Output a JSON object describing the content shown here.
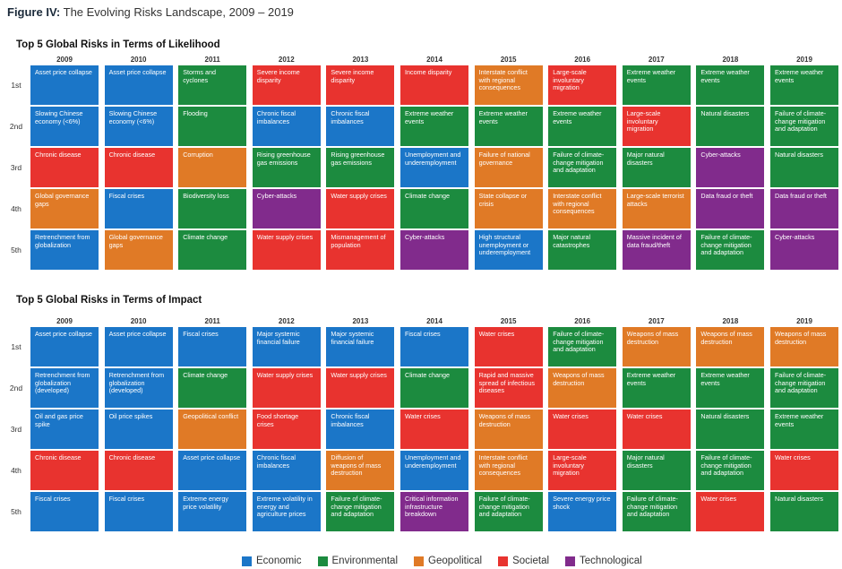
{
  "figure_title": {
    "prefix": "Figure IV:",
    "text": "The Evolving Risks Landscape, 2009 – 2019"
  },
  "categories": {
    "Economic": "#1b76c8",
    "Environmental": "#1c8b3f",
    "Geopolitical": "#e07a26",
    "Societal": "#e8332f",
    "Technological": "#812b8c"
  },
  "legend": [
    "Economic",
    "Environmental",
    "Geopolitical",
    "Societal",
    "Technological"
  ],
  "chart_data": [
    {
      "type": "table",
      "title": "Top 5 Global Risks in Terms of Likelihood",
      "years": [
        "2009",
        "2010",
        "2011",
        "2012",
        "2013",
        "2014",
        "2015",
        "2016",
        "2017",
        "2018",
        "2019"
      ],
      "ranks": [
        "1st",
        "2nd",
        "3rd",
        "4th",
        "5th"
      ],
      "cells": [
        [
          [
            "Asset price collapse",
            "Economic"
          ],
          [
            "Asset price collapse",
            "Economic"
          ],
          [
            "Storms and cyclones",
            "Environmental"
          ],
          [
            "Severe income disparity",
            "Societal"
          ],
          [
            "Severe income disparity",
            "Societal"
          ],
          [
            "Income disparity",
            "Societal"
          ],
          [
            "Interstate conflict with regional consequences",
            "Geopolitical"
          ],
          [
            "Large-scale involuntary migration",
            "Societal"
          ],
          [
            "Extreme weather events",
            "Environmental"
          ],
          [
            "Extreme weather events",
            "Environmental"
          ],
          [
            "Extreme weather events",
            "Environmental"
          ]
        ],
        [
          [
            "Slowing Chinese economy (<6%)",
            "Economic"
          ],
          [
            "Slowing Chinese economy (<6%)",
            "Economic"
          ],
          [
            "Flooding",
            "Environmental"
          ],
          [
            "Chronic fiscal imbalances",
            "Economic"
          ],
          [
            "Chronic fiscal imbalances",
            "Economic"
          ],
          [
            "Extreme weather events",
            "Environmental"
          ],
          [
            "Extreme weather events",
            "Environmental"
          ],
          [
            "Extreme weather events",
            "Environmental"
          ],
          [
            "Large-scale involuntary migration",
            "Societal"
          ],
          [
            "Natural disasters",
            "Environmental"
          ],
          [
            "Failure of climate-change mitigation and adaptation",
            "Environmental"
          ]
        ],
        [
          [
            "Chronic disease",
            "Societal"
          ],
          [
            "Chronic disease",
            "Societal"
          ],
          [
            "Corruption",
            "Geopolitical"
          ],
          [
            "Rising greenhouse gas emissions",
            "Environmental"
          ],
          [
            "Rising greenhouse gas emissions",
            "Environmental"
          ],
          [
            "Unemployment and underemployment",
            "Economic"
          ],
          [
            "Failure of national governance",
            "Geopolitical"
          ],
          [
            "Failure of climate-change mitigation and adaptation",
            "Environmental"
          ],
          [
            "Major natural disasters",
            "Environmental"
          ],
          [
            "Cyber-attacks",
            "Technological"
          ],
          [
            "Natural disasters",
            "Environmental"
          ]
        ],
        [
          [
            "Global governance gaps",
            "Geopolitical"
          ],
          [
            "Fiscal crises",
            "Economic"
          ],
          [
            "Biodiversity loss",
            "Environmental"
          ],
          [
            "Cyber-attacks",
            "Technological"
          ],
          [
            "Water supply crises",
            "Societal"
          ],
          [
            "Climate change",
            "Environmental"
          ],
          [
            "State collapse or crisis",
            "Geopolitical"
          ],
          [
            "Interstate conflict with regional consequences",
            "Geopolitical"
          ],
          [
            "Large-scale terrorist attacks",
            "Geopolitical"
          ],
          [
            "Data fraud or theft",
            "Technological"
          ],
          [
            "Data fraud or theft",
            "Technological"
          ]
        ],
        [
          [
            "Retrenchment from globalization",
            "Economic"
          ],
          [
            "Global governance gaps",
            "Geopolitical"
          ],
          [
            "Climate change",
            "Environmental"
          ],
          [
            "Water supply crises",
            "Societal"
          ],
          [
            "Mismanagement of population",
            "Societal"
          ],
          [
            "Cyber-attacks",
            "Technological"
          ],
          [
            "High structural unemployment or underemployment",
            "Economic"
          ],
          [
            "Major natural catastrophes",
            "Environmental"
          ],
          [
            "Massive incident of data fraud/theft",
            "Technological"
          ],
          [
            "Failure of climate-change mitigation and adaptation",
            "Environmental"
          ],
          [
            "Cyber-attacks",
            "Technological"
          ]
        ]
      ]
    },
    {
      "type": "table",
      "title": "Top 5 Global Risks in Terms of Impact",
      "years": [
        "2009",
        "2010",
        "2011",
        "2012",
        "2013",
        "2014",
        "2015",
        "2016",
        "2017",
        "2018",
        "2019"
      ],
      "ranks": [
        "1st",
        "2nd",
        "3rd",
        "4th",
        "5th"
      ],
      "cells": [
        [
          [
            "Asset price collapse",
            "Economic"
          ],
          [
            "Asset price collapse",
            "Economic"
          ],
          [
            "Fiscal crises",
            "Economic"
          ],
          [
            "Major systemic financial failure",
            "Economic"
          ],
          [
            "Major systemic financial failure",
            "Economic"
          ],
          [
            "Fiscal crises",
            "Economic"
          ],
          [
            "Water crises",
            "Societal"
          ],
          [
            "Failure of climate-change mitigation and adaptation",
            "Environmental"
          ],
          [
            "Weapons of mass destruction",
            "Geopolitical"
          ],
          [
            "Weapons of mass destruction",
            "Geopolitical"
          ],
          [
            "Weapons of mass destruction",
            "Geopolitical"
          ]
        ],
        [
          [
            "Retrenchment from globalization (developed)",
            "Economic"
          ],
          [
            "Retrenchment from globalization (developed)",
            "Economic"
          ],
          [
            "Climate change",
            "Environmental"
          ],
          [
            "Water supply crises",
            "Societal"
          ],
          [
            "Water supply crises",
            "Societal"
          ],
          [
            "Climate change",
            "Environmental"
          ],
          [
            "Rapid and massive spread of infectious diseases",
            "Societal"
          ],
          [
            "Weapons of mass destruction",
            "Geopolitical"
          ],
          [
            "Extreme weather events",
            "Environmental"
          ],
          [
            "Extreme weather events",
            "Environmental"
          ],
          [
            "Failure of climate-change mitigation and adaptation",
            "Environmental"
          ]
        ],
        [
          [
            "Oil and gas price spike",
            "Economic"
          ],
          [
            "Oil price spikes",
            "Economic"
          ],
          [
            "Geopolitical conflict",
            "Geopolitical"
          ],
          [
            "Food shortage crises",
            "Societal"
          ],
          [
            "Chronic fiscal imbalances",
            "Economic"
          ],
          [
            "Water crises",
            "Societal"
          ],
          [
            "Weapons of mass destruction",
            "Geopolitical"
          ],
          [
            "Water crises",
            "Societal"
          ],
          [
            "Water crises",
            "Societal"
          ],
          [
            "Natural disasters",
            "Environmental"
          ],
          [
            "Extreme weather events",
            "Environmental"
          ]
        ],
        [
          [
            "Chronic disease",
            "Societal"
          ],
          [
            "Chronic disease",
            "Societal"
          ],
          [
            "Asset price collapse",
            "Economic"
          ],
          [
            "Chronic fiscal imbalances",
            "Economic"
          ],
          [
            "Diffusion of weapons of mass destruction",
            "Geopolitical"
          ],
          [
            "Unemployment and underemployment",
            "Economic"
          ],
          [
            "Interstate conflict with regional consequences",
            "Geopolitical"
          ],
          [
            "Large-scale involuntary migration",
            "Societal"
          ],
          [
            "Major natural disasters",
            "Environmental"
          ],
          [
            "Failure of climate-change mitigation and adaptation",
            "Environmental"
          ],
          [
            "Water crises",
            "Societal"
          ]
        ],
        [
          [
            "Fiscal crises",
            "Economic"
          ],
          [
            "Fiscal crises",
            "Economic"
          ],
          [
            "Extreme energy price volatility",
            "Economic"
          ],
          [
            "Extreme volatility in energy and agriculture prices",
            "Economic"
          ],
          [
            "Failure of climate-change mitigation and adaptation",
            "Environmental"
          ],
          [
            "Critical information infrastructure breakdown",
            "Technological"
          ],
          [
            "Failure of climate-change mitigation and adaptation",
            "Environmental"
          ],
          [
            "Severe energy price shock",
            "Economic"
          ],
          [
            "Failure of climate-change mitigation and adaptation",
            "Environmental"
          ],
          [
            "Water crises",
            "Societal"
          ],
          [
            "Natural disasters",
            "Environmental"
          ]
        ]
      ]
    }
  ]
}
